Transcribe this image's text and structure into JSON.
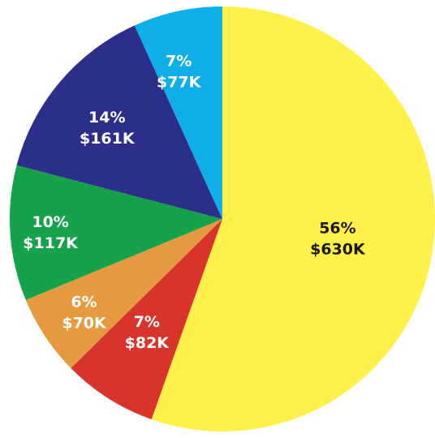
{
  "chart_data": {
    "type": "pie",
    "title": "",
    "slices": [
      {
        "percent_label": "56%",
        "value_label": "$630K",
        "value": 630,
        "color": "#fff04a",
        "text_color": "#1a1a1a"
      },
      {
        "percent_label": "7%",
        "value_label": "$82K",
        "value": 82,
        "color": "#d9342c",
        "text_color": "#ffffff"
      },
      {
        "percent_label": "6%",
        "value_label": "$70K",
        "value": 70,
        "color": "#e69a3f",
        "text_color": "#ffffff"
      },
      {
        "percent_label": "10%",
        "value_label": "$117K",
        "value": 117,
        "color": "#15a24a",
        "text_color": "#ffffff"
      },
      {
        "percent_label": "14%",
        "value_label": "$161K",
        "value": 161,
        "color": "#2b2f8a",
        "text_color": "#ffffff"
      },
      {
        "percent_label": "7%",
        "value_label": "$77K",
        "value": 77,
        "color": "#10aee8",
        "text_color": "#ffffff"
      }
    ],
    "start": "12 o'clock",
    "direction": "clockwise",
    "legend": "none"
  }
}
